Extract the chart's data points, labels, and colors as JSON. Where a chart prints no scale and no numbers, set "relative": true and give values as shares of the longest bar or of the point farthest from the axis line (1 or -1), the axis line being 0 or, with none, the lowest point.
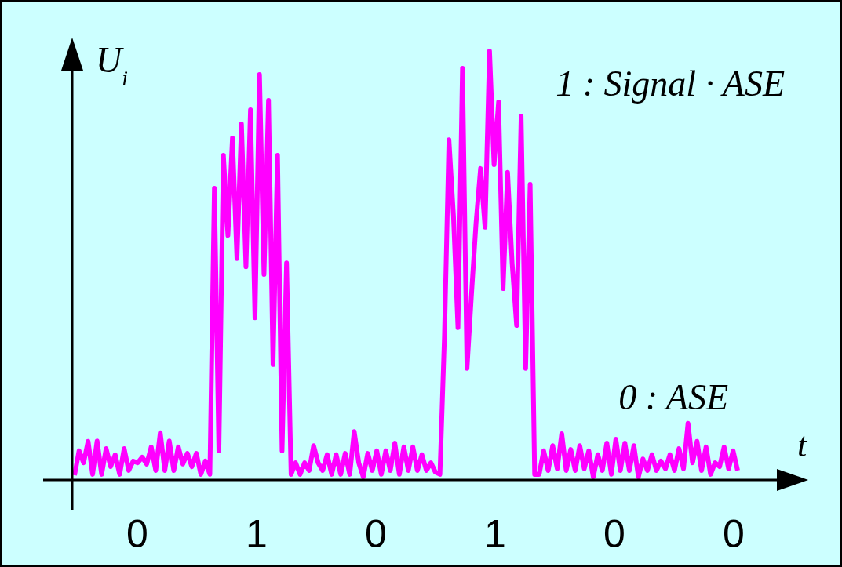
{
  "chart_data": {
    "type": "line",
    "relative": true,
    "xlabel": "t",
    "ylabel": "U$_{i}$",
    "categories": [
      null,
      null,
      null,
      null,
      null,
      null,
      null,
      null,
      null,
      null,
      null,
      null,
      null,
      null,
      null,
      null,
      null,
      null,
      null,
      null,
      null,
      null,
      null,
      null,
      null,
      null,
      null,
      null,
      null,
      null,
      null,
      null,
      null,
      null,
      null,
      null,
      null,
      null,
      null,
      null,
      null,
      null,
      null,
      null,
      null,
      null,
      null,
      null,
      null,
      null,
      null,
      null,
      null,
      null,
      null,
      null,
      null,
      null,
      null,
      null,
      null,
      null,
      null,
      null,
      null,
      null,
      null,
      null,
      null,
      null,
      null,
      null,
      null,
      null,
      null,
      null,
      null,
      null,
      null,
      null,
      null,
      null,
      null,
      null,
      null,
      null,
      null,
      null,
      null,
      null,
      null,
      null,
      null,
      null,
      null,
      null,
      null,
      null,
      null,
      null,
      null,
      null,
      null,
      null,
      null,
      null,
      null,
      null,
      null,
      null,
      null,
      null,
      null,
      null,
      null,
      null,
      null,
      null,
      null,
      null,
      null,
      null,
      null,
      null,
      null,
      null,
      null,
      null,
      null,
      null,
      null,
      null,
      null,
      null,
      null,
      null,
      null,
      null,
      null,
      null,
      null,
      null,
      null,
      null,
      null,
      null,
      null,
      null
    ],
    "annotations": [
      "1 : Signal · ASE",
      "0 : ASE",
      "0",
      "1",
      "0",
      "1",
      "0",
      "0"
    ],
    "series": [
      {
        "color": "#ff00ff",
        "values": [
          0.011,
          0.068,
          0.04,
          0.09,
          0.013,
          0.091,
          0.013,
          0.073,
          0.031,
          0.059,
          0.013,
          0.073,
          0.022,
          0.044,
          0.04,
          0.053,
          0.037,
          0.077,
          0.022,
          0.11,
          0.022,
          0.091,
          0.022,
          0.077,
          0.037,
          0.062,
          0.031,
          0.062,
          0.013,
          0.044,
          0.013,
          0.68,
          0.068,
          0.757,
          0.57,
          0.797,
          0.516,
          0.83,
          0.497,
          0.863,
          0.378,
          0.945,
          0.479,
          0.885,
          0.269,
          0.757,
          0.068,
          0.506,
          0.013,
          0.04,
          0.013,
          0.04,
          0.022,
          0.08,
          0.04,
          0.022,
          0.059,
          0.013,
          0.059,
          0.013,
          0.062,
          0.013,
          0.113,
          0.04,
          0.007,
          0.062,
          0.022,
          0.068,
          0.013,
          0.068,
          0.022,
          0.086,
          0.013,
          0.077,
          0.022,
          0.077,
          0.022,
          0.059,
          0.022,
          0.04,
          0.018,
          0.013,
          0.333,
          0.793,
          0.616,
          0.355,
          0.96,
          0.26,
          0.433,
          0.598,
          0.726,
          0.589,
          1.0,
          0.735,
          0.881,
          0.446,
          0.717,
          0.506,
          0.36,
          0.848,
          0.26,
          0.689,
          0.013,
          0.013,
          0.068,
          0.022,
          0.08,
          0.026,
          0.108,
          0.022,
          0.071,
          0.022,
          0.08,
          0.026,
          0.068,
          0.007,
          0.059,
          0.022,
          0.086,
          0.013,
          0.095,
          0.022,
          0.086,
          0.022,
          0.08,
          0.007,
          0.049,
          0.022,
          0.059,
          0.022,
          0.044,
          0.026,
          0.059,
          0.022,
          0.073,
          0.026,
          0.132,
          0.04,
          0.09,
          0.022,
          0.077,
          0.013,
          0.04,
          0.031,
          0.077,
          0.026,
          0.068,
          0.022
        ]
      }
    ]
  }
}
